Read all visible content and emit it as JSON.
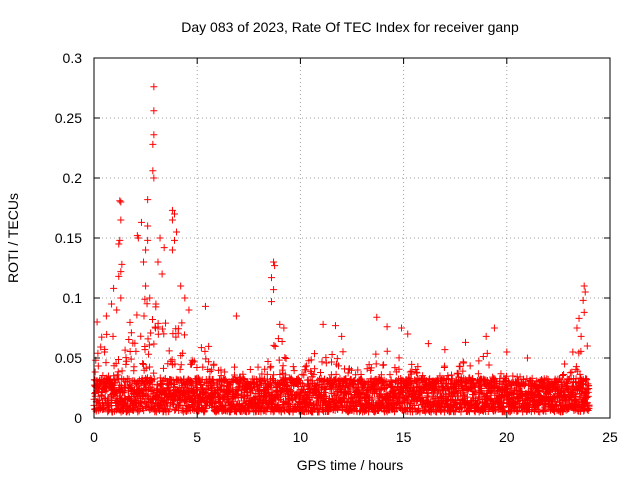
{
  "chart_data": {
    "type": "scatter",
    "title": "Day 083 of 2023, Rate Of TEC Index for receiver ganp",
    "xlabel": "GPS time / hours",
    "ylabel": "ROTI / TECUs",
    "xlim": [
      0,
      25
    ],
    "ylim": [
      0,
      0.3
    ],
    "x_ticks": [
      0,
      5,
      10,
      15,
      20,
      25
    ],
    "y_ticks": [
      0,
      0.05,
      0.1,
      0.15,
      0.2,
      0.25,
      0.3
    ],
    "x_tick_labels": [
      "0",
      "5",
      "10",
      "15",
      "20",
      "25"
    ],
    "y_tick_labels": [
      "0",
      "0.05",
      "0.1",
      "0.15",
      "0.2",
      "0.25",
      "0.3"
    ],
    "grid": true,
    "marker": "+",
    "marker_color": "#ff0000",
    "series": [
      {
        "name": "ROTI",
        "x_range": [
          0,
          24
        ],
        "typical_band": [
          0.005,
          0.04
        ],
        "notable_points": [
          {
            "x": 2.9,
            "y": 0.276
          },
          {
            "x": 2.9,
            "y": 0.256
          },
          {
            "x": 2.9,
            "y": 0.236
          },
          {
            "x": 2.85,
            "y": 0.228
          },
          {
            "x": 2.85,
            "y": 0.206
          },
          {
            "x": 2.9,
            "y": 0.2
          },
          {
            "x": 2.6,
            "y": 0.182
          },
          {
            "x": 2.3,
            "y": 0.163
          },
          {
            "x": 2.6,
            "y": 0.16
          },
          {
            "x": 3.8,
            "y": 0.173
          },
          {
            "x": 3.9,
            "y": 0.17
          },
          {
            "x": 3.8,
            "y": 0.165
          },
          {
            "x": 4.0,
            "y": 0.155
          },
          {
            "x": 3.9,
            "y": 0.148
          },
          {
            "x": 3.8,
            "y": 0.14
          },
          {
            "x": 2.1,
            "y": 0.152
          },
          {
            "x": 2.15,
            "y": 0.15
          },
          {
            "x": 2.6,
            "y": 0.148
          },
          {
            "x": 2.5,
            "y": 0.14
          },
          {
            "x": 2.4,
            "y": 0.13
          },
          {
            "x": 3.2,
            "y": 0.15
          },
          {
            "x": 3.4,
            "y": 0.142
          },
          {
            "x": 3.1,
            "y": 0.13
          },
          {
            "x": 3.3,
            "y": 0.12
          },
          {
            "x": 1.25,
            "y": 0.181
          },
          {
            "x": 1.3,
            "y": 0.18
          },
          {
            "x": 1.3,
            "y": 0.165
          },
          {
            "x": 1.25,
            "y": 0.148
          },
          {
            "x": 1.2,
            "y": 0.145
          },
          {
            "x": 1.35,
            "y": 0.128
          },
          {
            "x": 1.3,
            "y": 0.122
          },
          {
            "x": 1.2,
            "y": 0.118
          },
          {
            "x": 1.3,
            "y": 0.1
          },
          {
            "x": 0.95,
            "y": 0.108
          },
          {
            "x": 0.85,
            "y": 0.095
          },
          {
            "x": 1.1,
            "y": 0.09
          },
          {
            "x": 2.5,
            "y": 0.11
          },
          {
            "x": 2.7,
            "y": 0.1
          },
          {
            "x": 3.0,
            "y": 0.095
          },
          {
            "x": 4.2,
            "y": 0.11
          },
          {
            "x": 4.4,
            "y": 0.1
          },
          {
            "x": 4.6,
            "y": 0.09
          },
          {
            "x": 8.7,
            "y": 0.13
          },
          {
            "x": 8.75,
            "y": 0.127
          },
          {
            "x": 8.6,
            "y": 0.117
          },
          {
            "x": 8.7,
            "y": 0.107
          },
          {
            "x": 8.6,
            "y": 0.097
          },
          {
            "x": 9.0,
            "y": 0.078
          },
          {
            "x": 9.2,
            "y": 0.075
          },
          {
            "x": 5.4,
            "y": 0.093
          },
          {
            "x": 6.9,
            "y": 0.085
          },
          {
            "x": 0.15,
            "y": 0.08
          },
          {
            "x": 0.6,
            "y": 0.085
          },
          {
            "x": 11.1,
            "y": 0.078
          },
          {
            "x": 11.7,
            "y": 0.077
          },
          {
            "x": 12.0,
            "y": 0.068
          },
          {
            "x": 13.7,
            "y": 0.084
          },
          {
            "x": 14.2,
            "y": 0.076
          },
          {
            "x": 14.9,
            "y": 0.075
          },
          {
            "x": 15.2,
            "y": 0.07
          },
          {
            "x": 16.2,
            "y": 0.062
          },
          {
            "x": 17.0,
            "y": 0.057
          },
          {
            "x": 19.4,
            "y": 0.075
          },
          {
            "x": 19.0,
            "y": 0.068
          },
          {
            "x": 18.0,
            "y": 0.063
          },
          {
            "x": 20.0,
            "y": 0.055
          },
          {
            "x": 21.0,
            "y": 0.05
          },
          {
            "x": 22.8,
            "y": 0.045
          },
          {
            "x": 23.75,
            "y": 0.11
          },
          {
            "x": 23.8,
            "y": 0.105
          },
          {
            "x": 23.7,
            "y": 0.098
          },
          {
            "x": 23.75,
            "y": 0.088
          },
          {
            "x": 23.5,
            "y": 0.083
          },
          {
            "x": 23.4,
            "y": 0.075
          },
          {
            "x": 23.6,
            "y": 0.068
          },
          {
            "x": 23.9,
            "y": 0.06
          },
          {
            "x": 23.2,
            "y": 0.055
          }
        ],
        "activity_profile": [
          {
            "x": 0.0,
            "max": 0.065
          },
          {
            "x": 0.5,
            "max": 0.07
          },
          {
            "x": 1.0,
            "max": 0.09
          },
          {
            "x": 1.5,
            "max": 0.075
          },
          {
            "x": 2.0,
            "max": 0.085
          },
          {
            "x": 2.5,
            "max": 0.1
          },
          {
            "x": 3.0,
            "max": 0.095
          },
          {
            "x": 3.5,
            "max": 0.085
          },
          {
            "x": 4.0,
            "max": 0.09
          },
          {
            "x": 4.5,
            "max": 0.08
          },
          {
            "x": 5.0,
            "max": 0.06
          },
          {
            "x": 5.5,
            "max": 0.065
          },
          {
            "x": 6.0,
            "max": 0.045
          },
          {
            "x": 6.5,
            "max": 0.045
          },
          {
            "x": 7.0,
            "max": 0.05
          },
          {
            "x": 7.5,
            "max": 0.04
          },
          {
            "x": 8.0,
            "max": 0.045
          },
          {
            "x": 8.5,
            "max": 0.055
          },
          {
            "x": 9.0,
            "max": 0.07
          },
          {
            "x": 9.5,
            "max": 0.045
          },
          {
            "x": 10.0,
            "max": 0.04
          },
          {
            "x": 10.5,
            "max": 0.05
          },
          {
            "x": 11.0,
            "max": 0.06
          },
          {
            "x": 11.5,
            "max": 0.055
          },
          {
            "x": 12.0,
            "max": 0.06
          },
          {
            "x": 12.5,
            "max": 0.045
          },
          {
            "x": 13.0,
            "max": 0.04
          },
          {
            "x": 13.5,
            "max": 0.055
          },
          {
            "x": 14.0,
            "max": 0.06
          },
          {
            "x": 14.5,
            "max": 0.05
          },
          {
            "x": 15.0,
            "max": 0.055
          },
          {
            "x": 15.5,
            "max": 0.045
          },
          {
            "x": 16.0,
            "max": 0.045
          },
          {
            "x": 16.5,
            "max": 0.04
          },
          {
            "x": 17.0,
            "max": 0.045
          },
          {
            "x": 17.5,
            "max": 0.04
          },
          {
            "x": 18.0,
            "max": 0.05
          },
          {
            "x": 18.5,
            "max": 0.045
          },
          {
            "x": 19.0,
            "max": 0.055
          },
          {
            "x": 19.5,
            "max": 0.05
          },
          {
            "x": 20.0,
            "max": 0.04
          },
          {
            "x": 20.5,
            "max": 0.035
          },
          {
            "x": 21.0,
            "max": 0.035
          },
          {
            "x": 21.5,
            "max": 0.03
          },
          {
            "x": 22.0,
            "max": 0.03
          },
          {
            "x": 22.5,
            "max": 0.035
          },
          {
            "x": 23.0,
            "max": 0.04
          },
          {
            "x": 23.5,
            "max": 0.06
          },
          {
            "x": 24.0,
            "max": 0.035
          }
        ]
      }
    ]
  }
}
